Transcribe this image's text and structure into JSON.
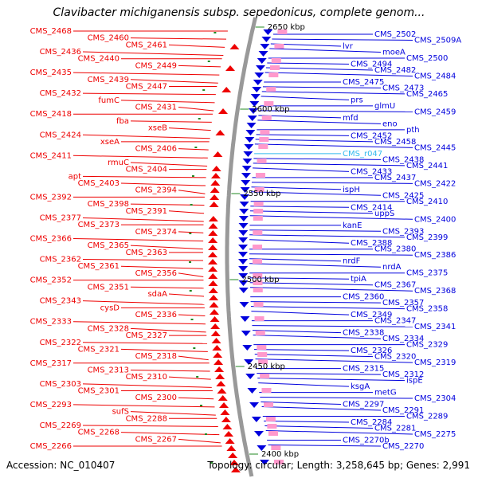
{
  "title": "Clavibacter michiganensis subsp. sepedonicus, complete genom...",
  "accession": "Accession: NC_010407",
  "summary": "Topology: circular; Length: 3,258,645 bp; Genes: 2,991",
  "colors": {
    "left_strand": "#ee0000",
    "right_strand": "#0000dd",
    "highlight": "#33bbee",
    "backbone": "#999999",
    "tick": "#228822"
  },
  "ticks": [
    "2650 kbp",
    "2600 kbp",
    "2550 kbp",
    "2500 kbp",
    "2450 kbp",
    "2400 kbp"
  ],
  "left_labels": [
    "CMS_2468",
    "CMS_2460",
    "CMS_2461",
    "CMS_2436",
    "CMS_2440",
    "CMS_2449",
    "CMS_2435",
    "CMS_2439",
    "CMS_2447",
    "CMS_2432",
    "fumC",
    "CMS_2431",
    "CMS_2418",
    "fba",
    "xseB",
    "CMS_2424",
    "xseA",
    "CMS_2406",
    "CMS_2411",
    "rmuC",
    "CMS_2404",
    "apt",
    "CMS_2403",
    "CMS_2394",
    "CMS_2392",
    "CMS_2398",
    "CMS_2391",
    "CMS_2377",
    "CMS_2373",
    "CMS_2374",
    "CMS_2366",
    "CMS_2365",
    "CMS_2363",
    "CMS_2362",
    "CMS_2361",
    "CMS_2356",
    "CMS_2352",
    "CMS_2351",
    "sdaA",
    "CMS_2343",
    "cysD",
    "CMS_2336",
    "CMS_2333",
    "CMS_2328",
    "CMS_2327",
    "CMS_2322",
    "CMS_2321",
    "CMS_2318",
    "CMS_2317",
    "CMS_2313",
    "CMS_2310",
    "CMS_2303",
    "CMS_2301",
    "CMS_2300",
    "CMS_2293",
    "sufS",
    "CMS_2288",
    "CMS_2269",
    "CMS_2268",
    "CMS_2267",
    "CMS_2266"
  ],
  "right_labels": [
    "CMS_2502",
    "CMS_2509A",
    "lvr",
    "moeA",
    "CMS_2500",
    "CMS_2494",
    "CMS_2482",
    "CMS_2484",
    "CMS_2475",
    "CMS_2473",
    "CMS_2465",
    "prs",
    "glmU",
    "CMS_2459",
    "mfd",
    "eno",
    "pth",
    "CMS_2452",
    "CMS_2458",
    "CMS_2445",
    "CMS_r047",
    "CMS_2438",
    "CMS_2441",
    "CMS_2433",
    "CMS_2437",
    "CMS_2422",
    "ispH",
    "CMS_2425",
    "CMS_2410",
    "CMS_2414",
    "uppS",
    "CMS_2400",
    "kanE",
    "CMS_2393",
    "CMS_2399",
    "CMS_2388",
    "CMS_2380",
    "CMS_2386",
    "nrdF",
    "nrdA",
    "CMS_2375",
    "tpiA",
    "CMS_2367",
    "CMS_2368",
    "CMS_2360",
    "CMS_2357",
    "CMS_2358",
    "CMS_2349",
    "CMS_2347",
    "CMS_2341",
    "CMS_2338",
    "CMS_2334",
    "CMS_2329",
    "CMS_2326",
    "CMS_2320",
    "CMS_2319",
    "CMS_2315",
    "CMS_2312",
    "ispE",
    "ksgA",
    "metG",
    "CMS_2304",
    "CMS_2297",
    "CMS_2291",
    "CMS_2289",
    "CMS_2284",
    "CMS_2281",
    "CMS_2275",
    "CMS_2270b",
    "CMS_2270"
  ]
}
